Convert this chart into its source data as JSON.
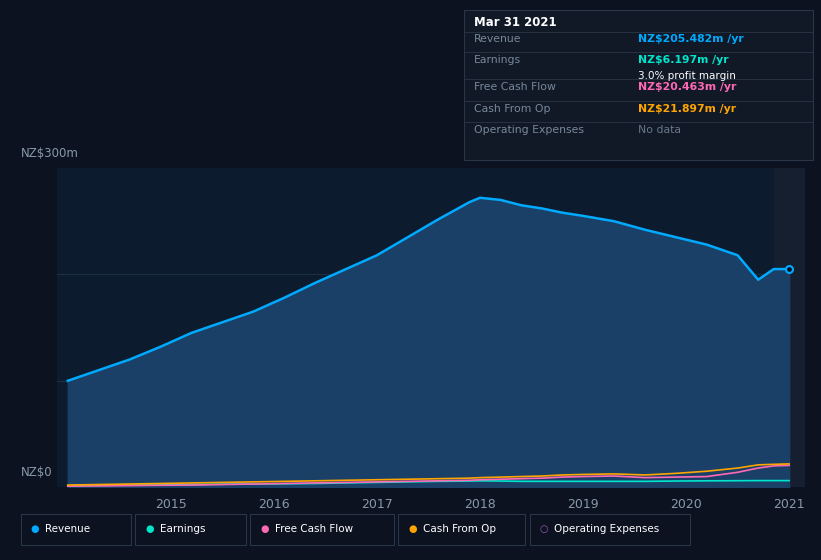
{
  "background_color": "#0c1220",
  "chart_area_color": "#0d1b2e",
  "top_area_color": "#0c1220",
  "years": [
    2014.0,
    2014.3,
    2014.6,
    2014.9,
    2015.2,
    2015.5,
    2015.8,
    2016.1,
    2016.4,
    2016.7,
    2017.0,
    2017.3,
    2017.6,
    2017.9,
    2018.0,
    2018.2,
    2018.4,
    2018.6,
    2018.8,
    2019.0,
    2019.3,
    2019.6,
    2019.9,
    2020.2,
    2020.5,
    2020.7,
    2020.85,
    2021.0
  ],
  "revenue": [
    100,
    110,
    120,
    132,
    145,
    155,
    165,
    178,
    192,
    205,
    218,
    235,
    252,
    268,
    272,
    270,
    265,
    262,
    258,
    255,
    250,
    242,
    235,
    228,
    218,
    195,
    205,
    205
  ],
  "earnings": [
    1.5,
    1.8,
    2.0,
    2.2,
    2.5,
    2.8,
    3.0,
    3.2,
    3.5,
    4.0,
    4.5,
    5.0,
    5.5,
    5.8,
    6.0,
    5.8,
    5.5,
    5.5,
    5.5,
    5.5,
    5.5,
    5.5,
    5.8,
    6.0,
    6.1,
    6.2,
    6.2,
    6.2
  ],
  "free_cash_flow": [
    1.0,
    1.2,
    1.5,
    1.8,
    2.0,
    2.5,
    3.0,
    3.5,
    4.0,
    4.5,
    5.0,
    5.5,
    6.0,
    6.5,
    7.0,
    7.5,
    8.0,
    8.5,
    9.5,
    10.0,
    10.5,
    9.0,
    9.5,
    10.0,
    14.0,
    18.0,
    20.0,
    20.5
  ],
  "cash_from_op": [
    2.0,
    2.5,
    3.0,
    3.5,
    4.0,
    4.5,
    5.0,
    5.5,
    6.0,
    6.5,
    7.0,
    7.5,
    8.0,
    8.5,
    9.0,
    9.5,
    10.0,
    10.5,
    11.5,
    12.0,
    12.5,
    11.5,
    13.0,
    15.0,
    18.0,
    21.0,
    21.5,
    21.9
  ],
  "revenue_color": "#00aaff",
  "revenue_fill_color": "#1a4068",
  "earnings_color": "#00e5cc",
  "free_cash_flow_color": "#ff69b4",
  "cash_from_op_color": "#ffa500",
  "op_expenses_color": "#9b59b6",
  "ylim": [
    0,
    300
  ],
  "xlim_min": 2013.9,
  "xlim_max": 2021.15,
  "ylabel_top": "NZ$300m",
  "ylabel_bottom": "NZ$0",
  "infobox_title": "Mar 31 2021",
  "infobox_revenue_label": "Revenue",
  "infobox_revenue_value": "NZ$205.482m /yr",
  "infobox_earnings_label": "Earnings",
  "infobox_earnings_value": "NZ$6.197m /yr",
  "infobox_margin_value": "3.0% profit margin",
  "infobox_fcf_label": "Free Cash Flow",
  "infobox_fcf_value": "NZ$20.463m /yr",
  "infobox_cashop_label": "Cash From Op",
  "infobox_cashop_value": "NZ$21.897m /yr",
  "infobox_opex_label": "Operating Expenses",
  "infobox_opex_value": "No data",
  "legend_items": [
    {
      "label": "Revenue",
      "color": "#00aaff",
      "filled": true
    },
    {
      "label": "Earnings",
      "color": "#00e5cc",
      "filled": true
    },
    {
      "label": "Free Cash Flow",
      "color": "#ff69b4",
      "filled": true
    },
    {
      "label": "Cash From Op",
      "color": "#ffa500",
      "filled": true
    },
    {
      "label": "Operating Expenses",
      "color": "#9b59b6",
      "filled": false
    }
  ],
  "xticks": [
    2015,
    2016,
    2017,
    2018,
    2019,
    2020,
    2021
  ],
  "grid_color": "#1e3048",
  "text_color": "#8899aa",
  "highlight_x": 2021.0,
  "highlight_band_color": "#151f30"
}
